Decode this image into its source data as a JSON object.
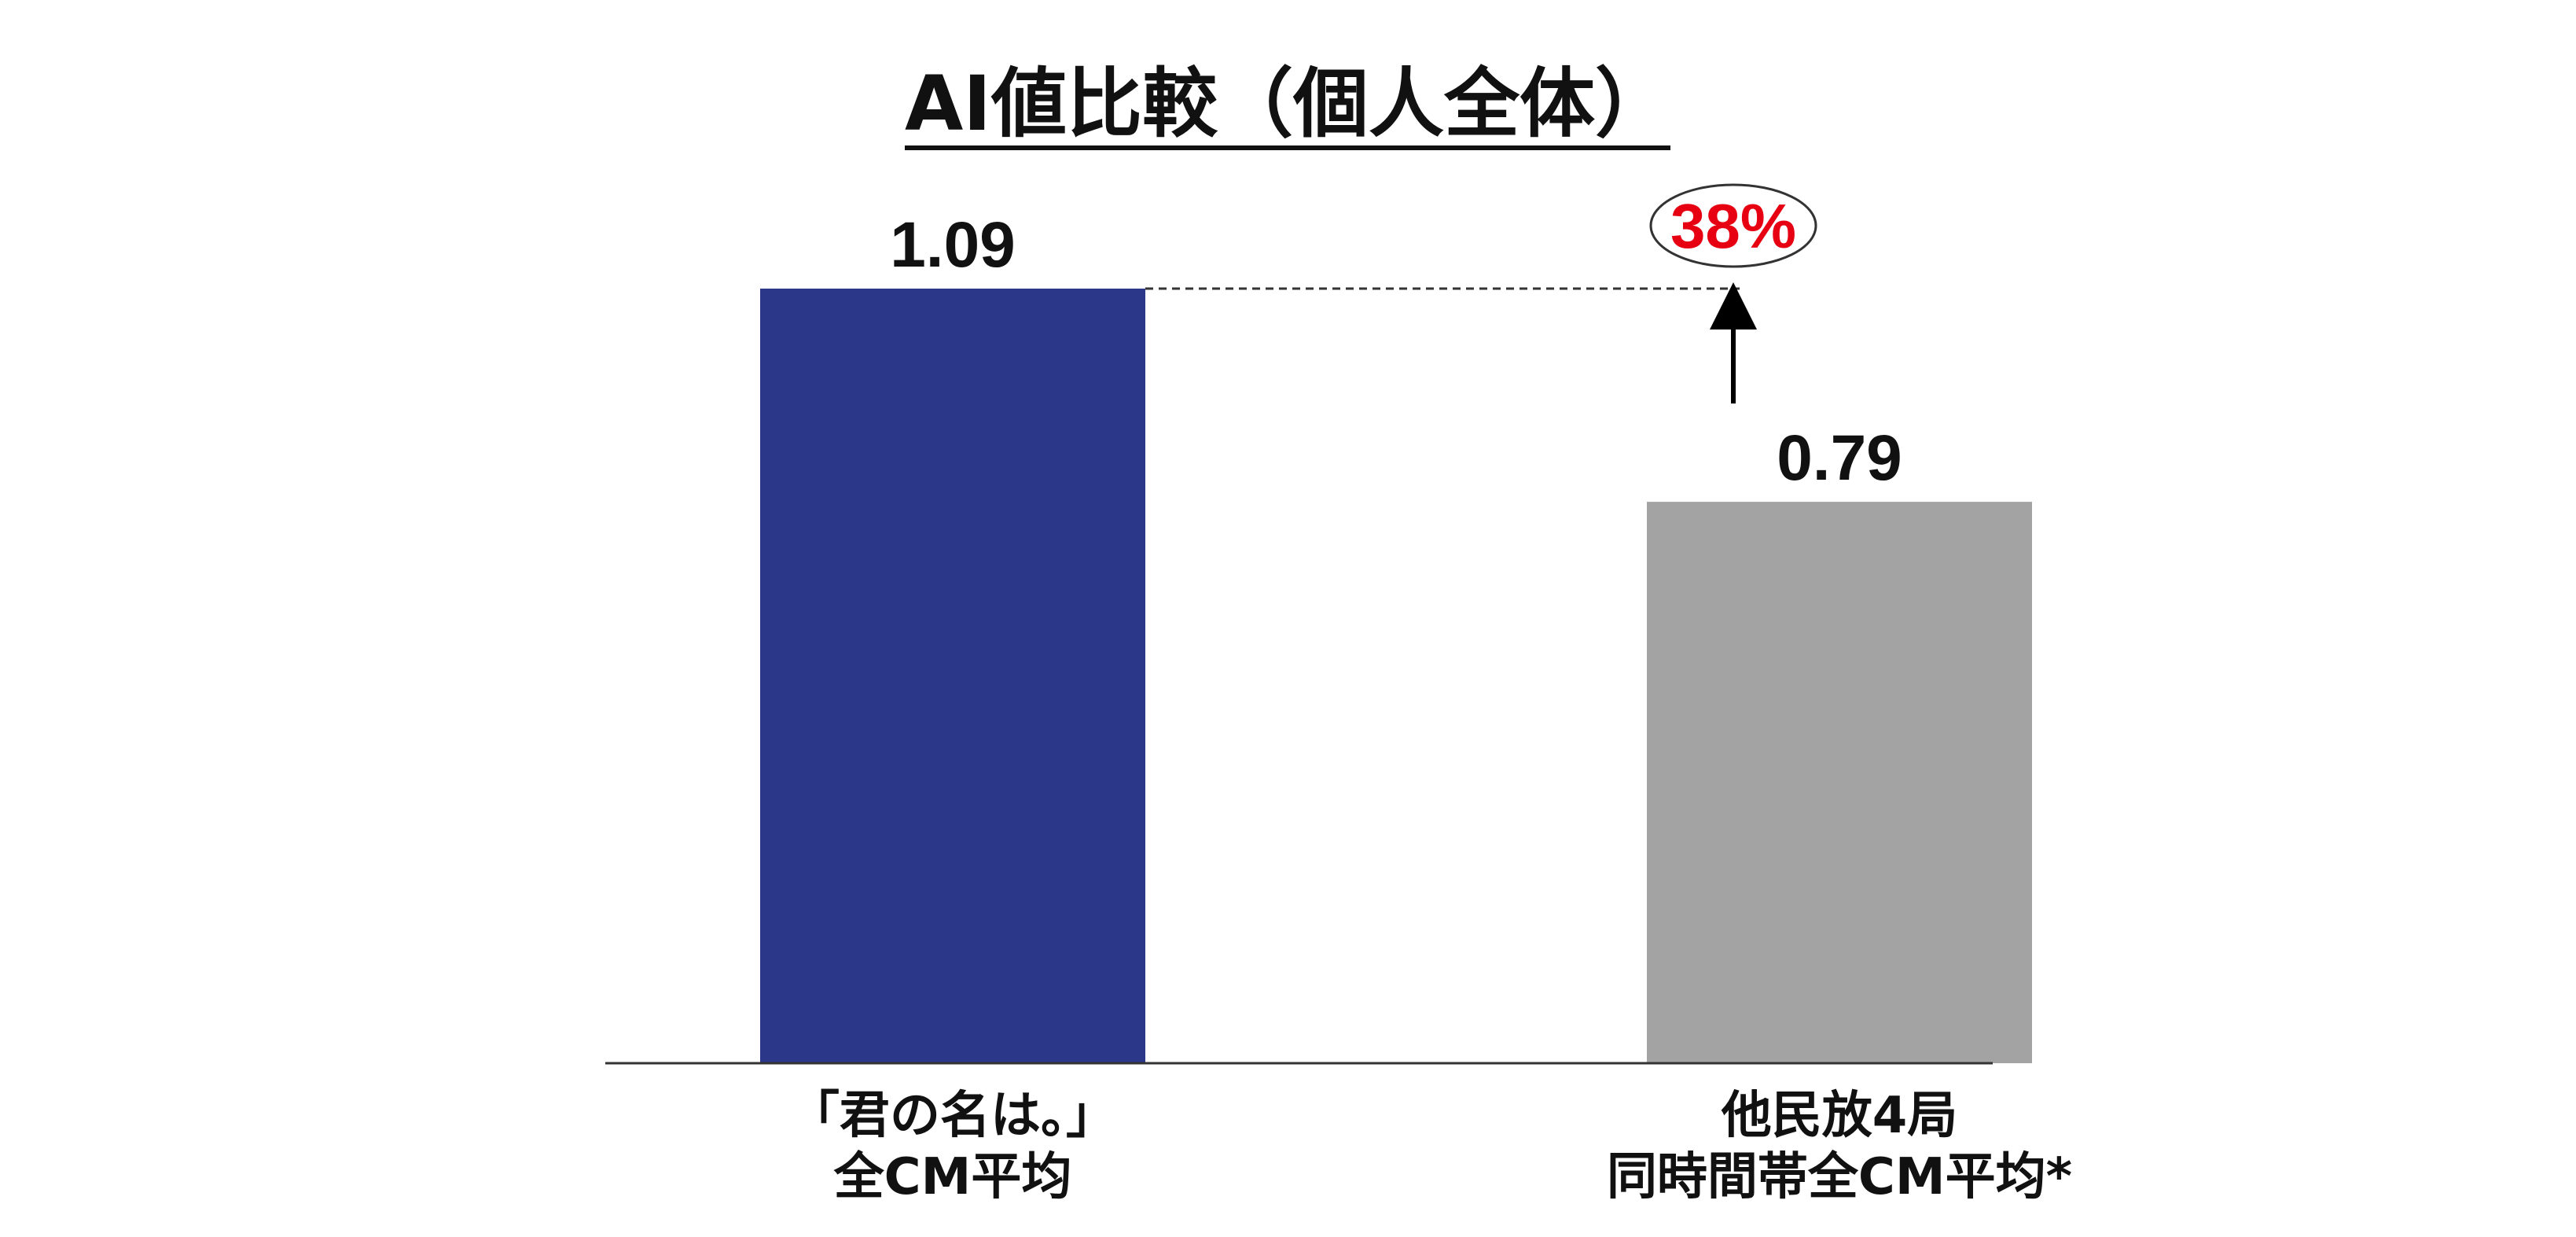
{
  "chart_data": {
    "type": "bar",
    "title": "AI値比較（個人全体）",
    "categories": [
      [
        "「君の名は。」",
        "全CM平均"
      ],
      [
        "他民放4局",
        "同時間帯全CM平均*"
      ]
    ],
    "values": [
      1.09,
      0.79
    ],
    "value_labels": [
      "1.09",
      "0.79"
    ],
    "bar_colors": [
      "#2b3789",
      "#a3a3a3"
    ],
    "ylim": [
      0,
      1.09
    ],
    "grid": false,
    "legend": "none",
    "annotation": {
      "text": "38%",
      "color": "#e60012",
      "from_category": 1,
      "to_value": 1.09
    }
  }
}
